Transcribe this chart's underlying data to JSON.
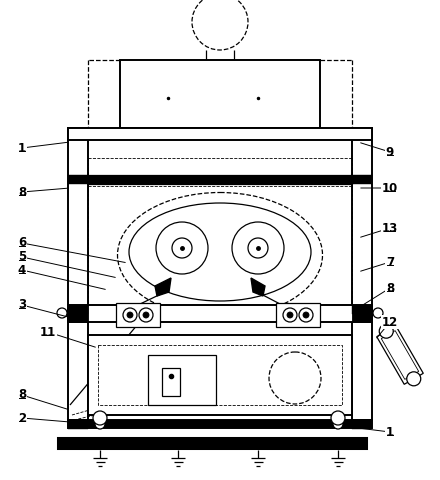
{
  "bg_color": "#ffffff",
  "line_color": "#000000",
  "labels_info": [
    [
      1,
      22,
      148,
      70,
      142
    ],
    [
      1,
      390,
      432,
      358,
      428
    ],
    [
      2,
      22,
      418,
      70,
      422
    ],
    [
      3,
      22,
      305,
      72,
      318
    ],
    [
      4,
      22,
      270,
      108,
      290
    ],
    [
      5,
      22,
      257,
      118,
      278
    ],
    [
      6,
      22,
      243,
      128,
      263
    ],
    [
      7,
      390,
      262,
      358,
      272
    ],
    [
      8,
      22,
      192,
      70,
      188
    ],
    [
      8,
      22,
      395,
      70,
      410
    ],
    [
      8,
      390,
      288,
      358,
      308
    ],
    [
      9,
      390,
      152,
      358,
      142
    ],
    [
      10,
      390,
      188,
      358,
      188
    ],
    [
      11,
      48,
      332,
      98,
      348
    ],
    [
      12,
      390,
      322,
      375,
      340
    ],
    [
      13,
      390,
      228,
      358,
      238
    ]
  ]
}
